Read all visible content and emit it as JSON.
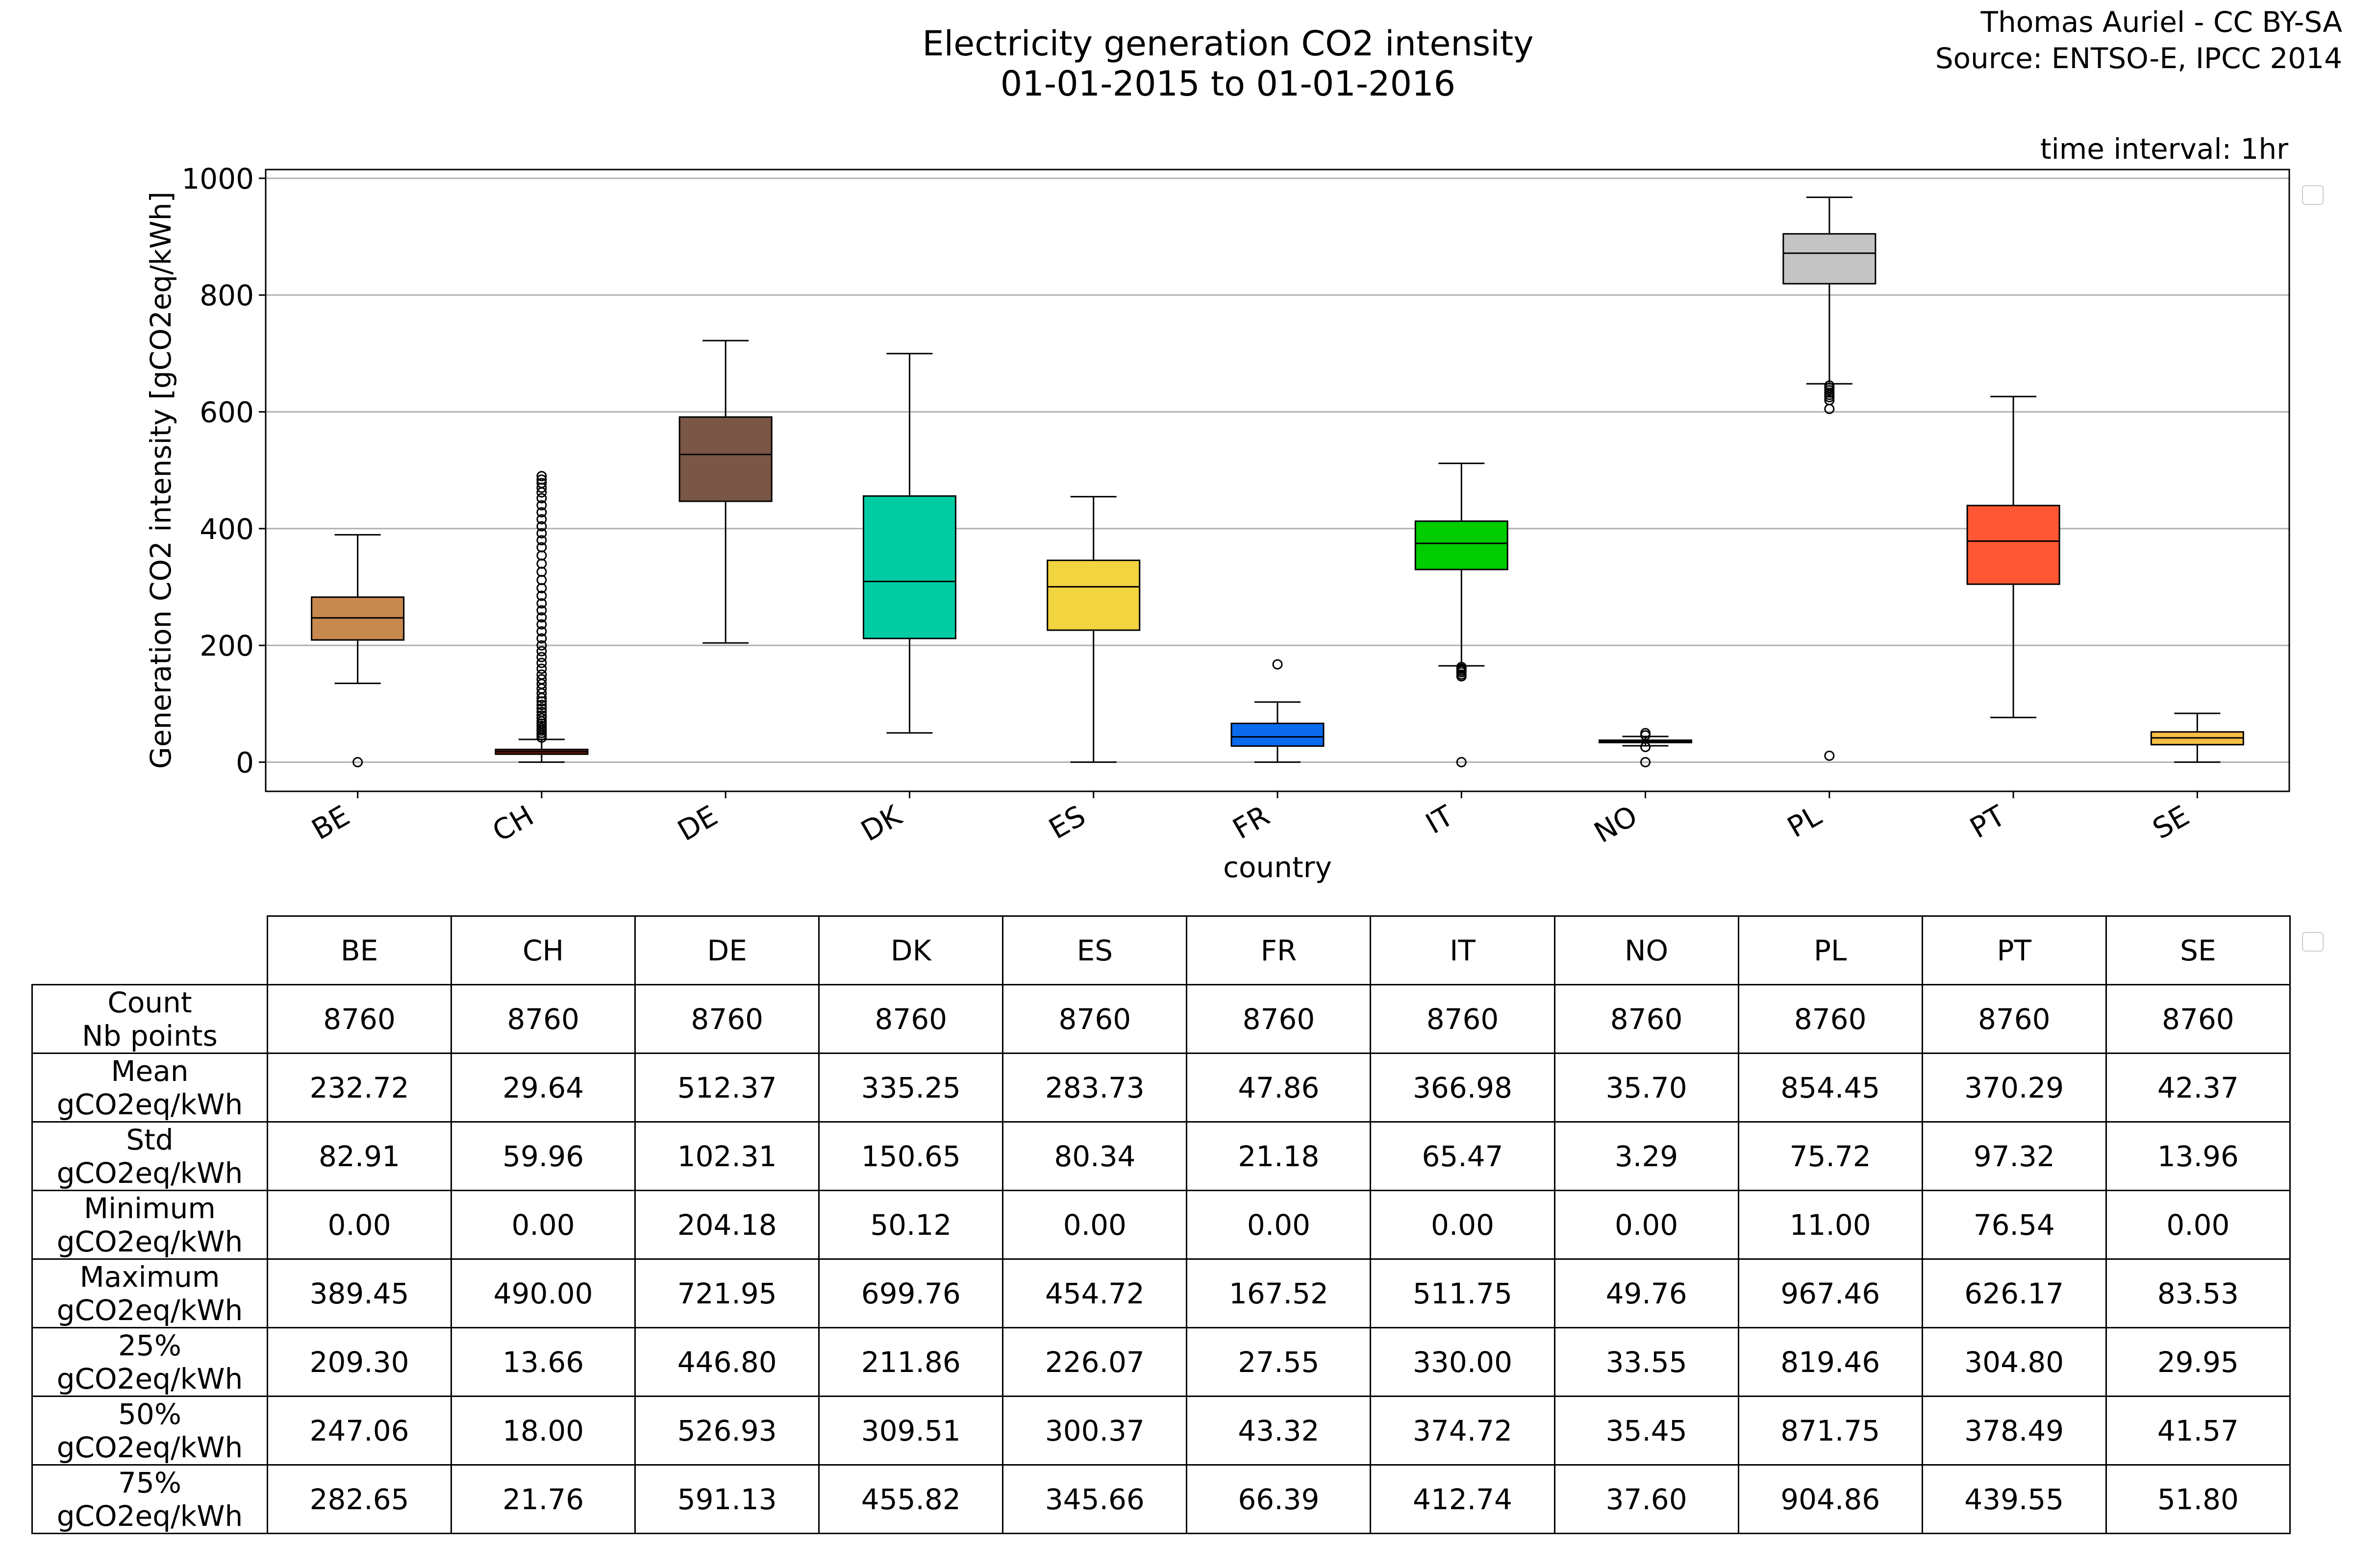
{
  "title_line1": "Electricity generation CO2 intensity",
  "title_line2": "01-01-2015 to 01-01-2016",
  "credit_line1": "Thomas Auriel - CC BY-SA",
  "credit_line2": "Source: ENTSO-E, IPCC 2014",
  "time_interval": "time interval: 1hr",
  "chart_data": {
    "type": "box",
    "xlabel": "country",
    "ylabel": "Generation CO2 intensity [gCO2eq/kWh]",
    "ylim": [
      -50,
      1015
    ],
    "yticks": [
      0,
      200,
      400,
      600,
      800,
      1000
    ],
    "grid": "horizontal",
    "categories": [
      "BE",
      "CH",
      "DE",
      "DK",
      "ES",
      "FR",
      "IT",
      "NO",
      "PL",
      "PT",
      "SE"
    ],
    "boxes": [
      {
        "category": "BE",
        "color": "#c8894e",
        "q1": 209.3,
        "median": 247.06,
        "q3": 282.65,
        "whisker_low": 135,
        "whisker_high": 389.45,
        "outliers": [
          0
        ]
      },
      {
        "category": "CH",
        "color": "#7a1f0c",
        "q1": 13.66,
        "median": 18.0,
        "q3": 21.76,
        "whisker_low": 0,
        "whisker_high": 39,
        "outliers": [
          42,
          46,
          50,
          54,
          58,
          62,
          66,
          70,
          75,
          80,
          86,
          92,
          98,
          104,
          110,
          118,
          126,
          134,
          142,
          150,
          160,
          170,
          180,
          190,
          200,
          212,
          224,
          236,
          248,
          260,
          272,
          285,
          298,
          312,
          326,
          340,
          354,
          368,
          380,
          392,
          404,
          416,
          428,
          440,
          452,
          462,
          470,
          478,
          484,
          490
        ]
      },
      {
        "category": "DE",
        "color": "#7a5646",
        "q1": 446.8,
        "median": 526.93,
        "q3": 591.13,
        "whisker_low": 204.18,
        "whisker_high": 721.95,
        "outliers": []
      },
      {
        "category": "DK",
        "color": "#00cca3",
        "q1": 211.86,
        "median": 309.51,
        "q3": 455.82,
        "whisker_low": 50.12,
        "whisker_high": 699.76,
        "outliers": []
      },
      {
        "category": "ES",
        "color": "#f2d340",
        "q1": 226.07,
        "median": 300.37,
        "q3": 345.66,
        "whisker_low": 0,
        "whisker_high": 454.72,
        "outliers": []
      },
      {
        "category": "FR",
        "color": "#0a6bef",
        "q1": 27.55,
        "median": 43.32,
        "q3": 66.39,
        "whisker_low": 0,
        "whisker_high": 103,
        "outliers": [
          167.52
        ]
      },
      {
        "category": "IT",
        "color": "#00cc00",
        "q1": 330.0,
        "median": 374.72,
        "q3": 412.74,
        "whisker_low": 165,
        "whisker_high": 511.75,
        "outliers": [
          163,
          160,
          157,
          154,
          150,
          147,
          0
        ]
      },
      {
        "category": "NO",
        "color": "#1a3fd9",
        "q1": 33.55,
        "median": 35.45,
        "q3": 37.6,
        "whisker_low": 28,
        "whisker_high": 44,
        "outliers": [
          49.76,
          46,
          26,
          0
        ]
      },
      {
        "category": "PL",
        "color": "#c4c4c4",
        "q1": 819.46,
        "median": 871.75,
        "q3": 904.86,
        "whisker_low": 648,
        "whisker_high": 967.46,
        "outliers": [
          645,
          641,
          637,
          633,
          629,
          625,
          620,
          605,
          11
        ]
      },
      {
        "category": "PT",
        "color": "#ff5733",
        "q1": 304.8,
        "median": 378.49,
        "q3": 439.55,
        "whisker_low": 76.54,
        "whisker_high": 626.17,
        "outliers": []
      },
      {
        "category": "SE",
        "color": "#f5be45",
        "q1": 29.95,
        "median": 41.57,
        "q3": 51.8,
        "whisker_low": 0,
        "whisker_high": 83.53,
        "outliers": []
      }
    ]
  },
  "table": {
    "columns": [
      "BE",
      "CH",
      "DE",
      "DK",
      "ES",
      "FR",
      "IT",
      "NO",
      "PL",
      "PT",
      "SE"
    ],
    "rows": [
      {
        "label1": "Count",
        "label2": "Nb points",
        "values": [
          "8760",
          "8760",
          "8760",
          "8760",
          "8760",
          "8760",
          "8760",
          "8760",
          "8760",
          "8760",
          "8760"
        ]
      },
      {
        "label1": "Mean",
        "label2": "gCO2eq/kWh",
        "values": [
          "232.72",
          "29.64",
          "512.37",
          "335.25",
          "283.73",
          "47.86",
          "366.98",
          "35.70",
          "854.45",
          "370.29",
          "42.37"
        ]
      },
      {
        "label1": "Std",
        "label2": "gCO2eq/kWh",
        "values": [
          "82.91",
          "59.96",
          "102.31",
          "150.65",
          "80.34",
          "21.18",
          "65.47",
          "3.29",
          "75.72",
          "97.32",
          "13.96"
        ]
      },
      {
        "label1": "Minimum",
        "label2": "gCO2eq/kWh",
        "values": [
          "0.00",
          "0.00",
          "204.18",
          "50.12",
          "0.00",
          "0.00",
          "0.00",
          "0.00",
          "11.00",
          "76.54",
          "0.00"
        ]
      },
      {
        "label1": "Maximum",
        "label2": "gCO2eq/kWh",
        "values": [
          "389.45",
          "490.00",
          "721.95",
          "699.76",
          "454.72",
          "167.52",
          "511.75",
          "49.76",
          "967.46",
          "626.17",
          "83.53"
        ]
      },
      {
        "label1": "25%",
        "label2": "gCO2eq/kWh",
        "values": [
          "209.30",
          "13.66",
          "446.80",
          "211.86",
          "226.07",
          "27.55",
          "330.00",
          "33.55",
          "819.46",
          "304.80",
          "29.95"
        ]
      },
      {
        "label1": "50%",
        "label2": "gCO2eq/kWh",
        "values": [
          "247.06",
          "18.00",
          "526.93",
          "309.51",
          "300.37",
          "43.32",
          "374.72",
          "35.45",
          "871.75",
          "378.49",
          "41.57"
        ]
      },
      {
        "label1": "75%",
        "label2": "gCO2eq/kWh",
        "values": [
          "282.65",
          "21.76",
          "591.13",
          "455.82",
          "345.66",
          "66.39",
          "412.74",
          "37.60",
          "904.86",
          "439.55",
          "51.80"
        ]
      }
    ]
  }
}
